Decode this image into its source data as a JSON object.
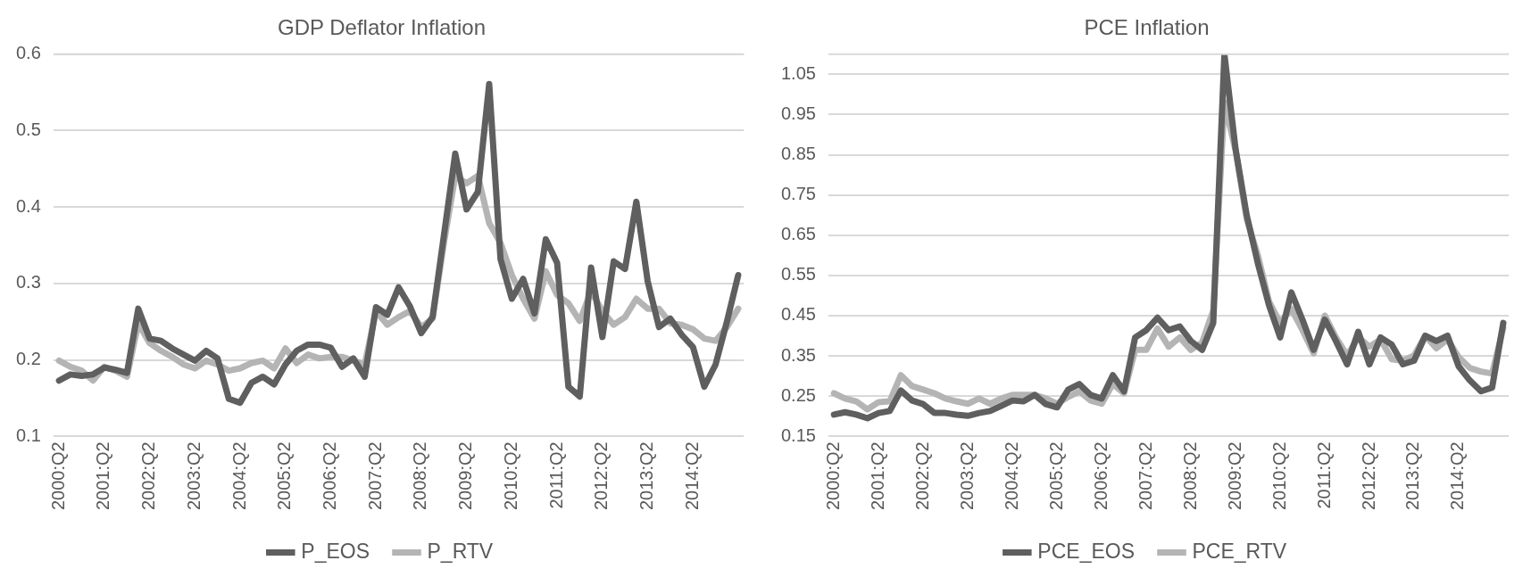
{
  "chart_data": [
    {
      "type": "line",
      "title": "GDP Deflator Inflation",
      "categories": [
        "2000:Q2",
        null,
        null,
        null,
        "2001:Q2",
        null,
        null,
        null,
        "2002:Q2",
        null,
        null,
        null,
        "2003:Q2",
        null,
        null,
        null,
        "2004:Q2",
        null,
        null,
        null,
        "2005:Q2",
        null,
        null,
        null,
        "2006:Q2",
        null,
        null,
        null,
        "2007:Q2",
        null,
        null,
        null,
        "2008:Q2",
        null,
        null,
        null,
        "2009:Q2",
        null,
        null,
        null,
        "2010:Q2",
        null,
        null,
        null,
        "2011:Q2",
        null,
        null,
        null,
        "2012:Q2",
        null,
        null,
        null,
        "2013:Q2",
        null,
        null,
        null,
        "2014:Q2",
        null,
        null,
        null,
        null
      ],
      "series": [
        {
          "name": "P_EOS",
          "color": "#5f5f5f",
          "values": [
            0.173,
            0.181,
            0.179,
            0.181,
            0.19,
            0.187,
            0.183,
            0.267,
            0.228,
            0.225,
            0.215,
            0.207,
            0.199,
            0.212,
            0.202,
            0.149,
            0.144,
            0.17,
            0.178,
            0.168,
            0.194,
            0.212,
            0.22,
            0.22,
            0.216,
            0.191,
            0.202,
            0.178,
            0.269,
            0.259,
            0.295,
            0.27,
            0.235,
            0.256,
            0.363,
            0.47,
            0.397,
            0.42,
            0.561,
            0.332,
            0.28,
            0.306,
            0.261,
            0.358,
            0.327,
            0.165,
            0.152,
            0.321,
            0.23,
            0.329,
            0.319,
            0.407,
            0.303,
            0.243,
            0.254,
            0.233,
            0.217,
            0.165,
            0.194,
            0.25,
            0.311
          ]
        },
        {
          "name": "P_RTV",
          "color": "#b4b4b4",
          "values": [
            0.199,
            0.191,
            0.186,
            0.173,
            0.191,
            0.186,
            0.178,
            0.248,
            0.222,
            0.212,
            0.204,
            0.194,
            0.189,
            0.199,
            0.194,
            0.186,
            0.189,
            0.196,
            0.199,
            0.189,
            0.215,
            0.196,
            0.207,
            0.202,
            0.204,
            0.204,
            0.199,
            0.194,
            0.264,
            0.246,
            0.256,
            0.264,
            0.243,
            0.254,
            0.353,
            0.441,
            0.431,
            0.441,
            0.379,
            0.353,
            0.311,
            0.28,
            0.254,
            0.316,
            0.285,
            0.274,
            0.251,
            0.29,
            0.264,
            0.246,
            0.256,
            0.28,
            0.267,
            0.267,
            0.248,
            0.246,
            0.24,
            0.228,
            0.225,
            0.243,
            0.267
          ]
        }
      ],
      "ylim": [
        0.1,
        0.6
      ],
      "yticks": [
        0.1,
        0.2,
        0.3,
        0.4,
        0.5,
        0.6
      ],
      "grid": "y",
      "legend": "bottom"
    },
    {
      "type": "line",
      "title": "PCE Inflation",
      "categories": [
        "2000:Q2",
        null,
        null,
        null,
        "2001:Q2",
        null,
        null,
        null,
        "2002:Q2",
        null,
        null,
        null,
        "2003:Q2",
        null,
        null,
        null,
        "2004:Q2",
        null,
        null,
        null,
        "2005:Q2",
        null,
        null,
        null,
        "2006:Q2",
        null,
        null,
        null,
        "2007:Q2",
        null,
        null,
        null,
        "2008:Q2",
        null,
        null,
        null,
        "2009:Q2",
        null,
        null,
        null,
        "2010:Q2",
        null,
        null,
        null,
        "2011:Q2",
        null,
        null,
        null,
        "2012:Q2",
        null,
        null,
        null,
        "2013:Q2",
        null,
        null,
        null,
        "2014:Q2",
        null,
        null,
        null,
        null
      ],
      "series": [
        {
          "name": "PCE_EOS",
          "color": "#5f5f5f",
          "values": [
            0.204,
            0.21,
            0.204,
            0.195,
            0.208,
            0.213,
            0.264,
            0.239,
            0.23,
            0.208,
            0.208,
            0.204,
            0.201,
            0.208,
            0.213,
            0.226,
            0.239,
            0.237,
            0.253,
            0.23,
            0.222,
            0.266,
            0.28,
            0.253,
            0.244,
            0.302,
            0.262,
            0.396,
            0.414,
            0.445,
            0.414,
            0.423,
            0.387,
            0.365,
            0.432,
            1.1,
            0.865,
            0.7,
            0.58,
            0.476,
            0.396,
            0.508,
            0.44,
            0.365,
            0.44,
            0.387,
            0.329,
            0.41,
            0.329,
            0.396,
            0.378,
            0.329,
            0.338,
            0.4,
            0.387,
            0.4,
            0.324,
            0.289,
            0.262,
            0.271,
            0.432
          ]
        },
        {
          "name": "PCE_RTV",
          "color": "#b4b4b4",
          "values": [
            0.257,
            0.244,
            0.237,
            0.217,
            0.235,
            0.237,
            0.302,
            0.275,
            0.266,
            0.257,
            0.244,
            0.237,
            0.231,
            0.244,
            0.231,
            0.244,
            0.253,
            0.253,
            0.253,
            0.244,
            0.231,
            0.248,
            0.262,
            0.239,
            0.231,
            0.28,
            0.257,
            0.365,
            0.365,
            0.418,
            0.373,
            0.396,
            0.365,
            0.383,
            0.463,
            0.981,
            0.861,
            0.69,
            0.6,
            0.485,
            0.432,
            0.467,
            0.414,
            0.356,
            0.45,
            0.396,
            0.351,
            0.396,
            0.373,
            0.391,
            0.342,
            0.338,
            0.351,
            0.4,
            0.369,
            0.391,
            0.347,
            0.32,
            0.311,
            0.306,
            0.42
          ]
        }
      ],
      "ylim": [
        0.15,
        1.1
      ],
      "yticks": [
        0.15,
        0.25,
        0.35,
        0.45,
        0.55,
        0.65,
        0.75,
        0.85,
        0.95,
        1.05
      ],
      "grid": "y",
      "legend": "bottom"
    }
  ]
}
